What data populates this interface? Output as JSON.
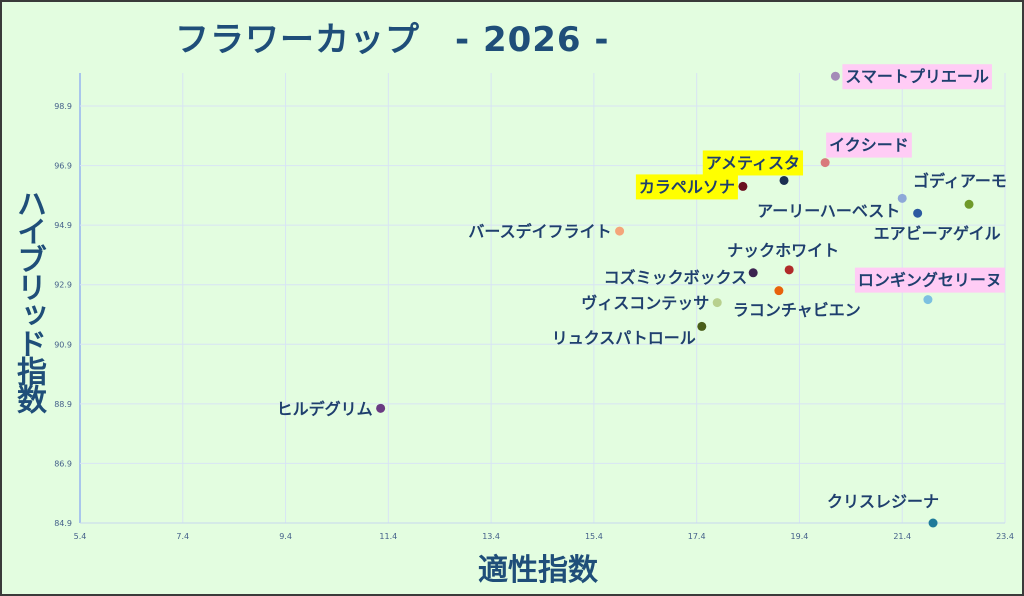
{
  "chart_data": {
    "type": "scatter",
    "title": "フラワーカップ　- 2026 -",
    "xlabel": "適性指数",
    "ylabel": "ハイブリッド指数",
    "xlim": [
      5.4,
      23.4
    ],
    "ylim": [
      84.9,
      100.0
    ],
    "xticks": [
      "5.4",
      "7.4",
      "9.4",
      "11.4",
      "13.4",
      "15.4",
      "17.4",
      "19.4",
      "21.4",
      "23.4"
    ],
    "yticks": [
      "84.9",
      "86.9",
      "88.9",
      "90.9",
      "92.9",
      "94.9",
      "96.9",
      "98.9"
    ],
    "grid": true,
    "points": [
      {
        "name": "スマートプリエール",
        "x": 20.1,
        "y": 99.9,
        "color": "#a48ab8",
        "highlight": "#ffccf5"
      },
      {
        "name": "イクシード",
        "x": 19.9,
        "y": 97.0,
        "color": "#d9797c",
        "highlight": "#ffccf5"
      },
      {
        "name": "アメティスタ",
        "x": 19.1,
        "y": 96.4,
        "color": "#1b2f52",
        "highlight": "#ffff00"
      },
      {
        "name": "カラペルソナ",
        "x": 18.3,
        "y": 96.2,
        "color": "#6b1020",
        "highlight": "#ffff00"
      },
      {
        "name": "ゴディアーモ",
        "x": 22.7,
        "y": 95.6,
        "color": "#6f9a2a",
        "highlight": ""
      },
      {
        "name": "アーリーハーベスト",
        "x": 21.4,
        "y": 95.8,
        "color": "#8ea8d8",
        "highlight": ""
      },
      {
        "name": "エアビーアゲイル",
        "x": 21.7,
        "y": 95.3,
        "color": "#2c5aa0",
        "highlight": ""
      },
      {
        "name": "バースデイフライト",
        "x": 15.9,
        "y": 94.7,
        "color": "#f4a57a",
        "highlight": ""
      },
      {
        "name": "ナックホワイト",
        "x": 19.2,
        "y": 93.4,
        "color": "#b02a2a",
        "highlight": ""
      },
      {
        "name": "コズミックボックス",
        "x": 18.5,
        "y": 93.3,
        "color": "#3c2350",
        "highlight": ""
      },
      {
        "name": "ラコンチャビエン",
        "x": 19.0,
        "y": 92.7,
        "color": "#e8620c",
        "highlight": ""
      },
      {
        "name": "ロンギングセリーヌ",
        "x": 21.9,
        "y": 92.4,
        "color": "#7cc0e0",
        "highlight": "#ffccf5"
      },
      {
        "name": "ヴィスコンテッサ",
        "x": 17.8,
        "y": 92.3,
        "color": "#b8d08e",
        "highlight": ""
      },
      {
        "name": "リュクスパトロール",
        "x": 17.5,
        "y": 91.5,
        "color": "#4a5e1a",
        "highlight": ""
      },
      {
        "name": "ヒルデグリム",
        "x": 11.25,
        "y": 88.75,
        "color": "#6a3a82",
        "highlight": ""
      },
      {
        "name": "クリスレジーナ",
        "x": 22.0,
        "y": 84.9,
        "color": "#1f7a9a",
        "highlight": ""
      }
    ]
  }
}
